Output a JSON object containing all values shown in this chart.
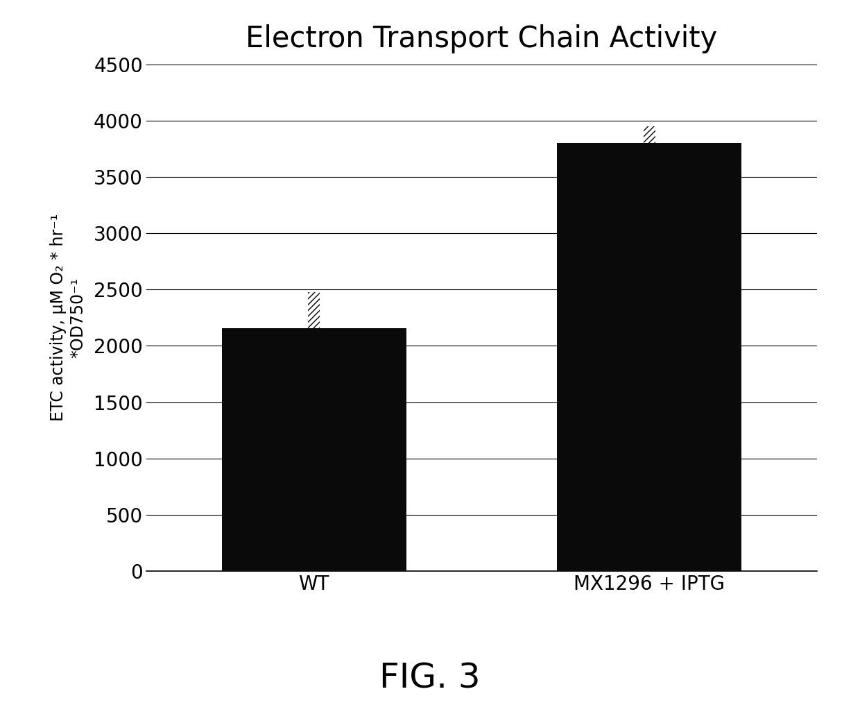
{
  "title": "Electron Transport Chain Activity",
  "ylabel_line1": "ETC activity, μM O₂ * hr⁻¹",
  "ylabel_line2": "*OD750⁻¹",
  "categories": [
    "WT",
    "MX1296 + IPTG"
  ],
  "values": [
    2160,
    3800
  ],
  "errors": [
    320,
    150
  ],
  "bar_color": "#0a0a0a",
  "ylim": [
    0,
    4500
  ],
  "yticks": [
    0,
    500,
    1000,
    1500,
    2000,
    2500,
    3000,
    3500,
    4000,
    4500
  ],
  "fig_caption": "FIG. 3",
  "title_fontsize": 30,
  "ylabel_fontsize": 17,
  "tick_fontsize": 20,
  "caption_fontsize": 36,
  "bar_width": 0.55,
  "background_color": "#ffffff",
  "xlim": [
    -0.5,
    1.5
  ]
}
